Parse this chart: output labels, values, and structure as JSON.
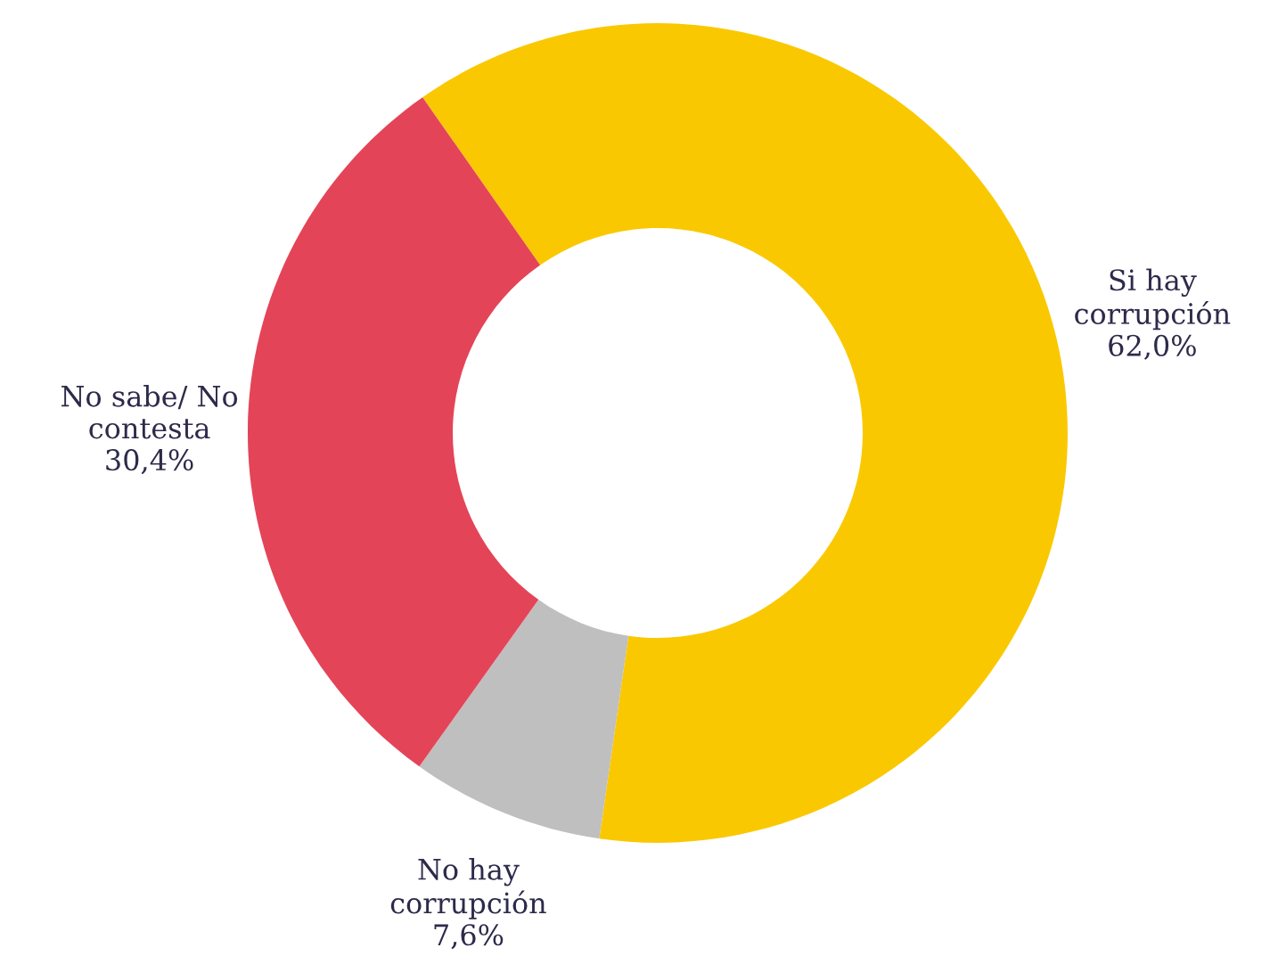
{
  "chart_data": {
    "type": "donut",
    "categories": [
      "Si hay\ncorrupción",
      "No hay\ncorrupción",
      "No sabe/ No\ncontesta"
    ],
    "values": [
      62.0,
      7.6,
      30.4
    ],
    "value_labels": [
      "62,0%",
      "7,6%",
      "30,4%"
    ],
    "colors": [
      "#fac800",
      "#bfbfbf",
      "#e44458"
    ],
    "legend": false
  }
}
